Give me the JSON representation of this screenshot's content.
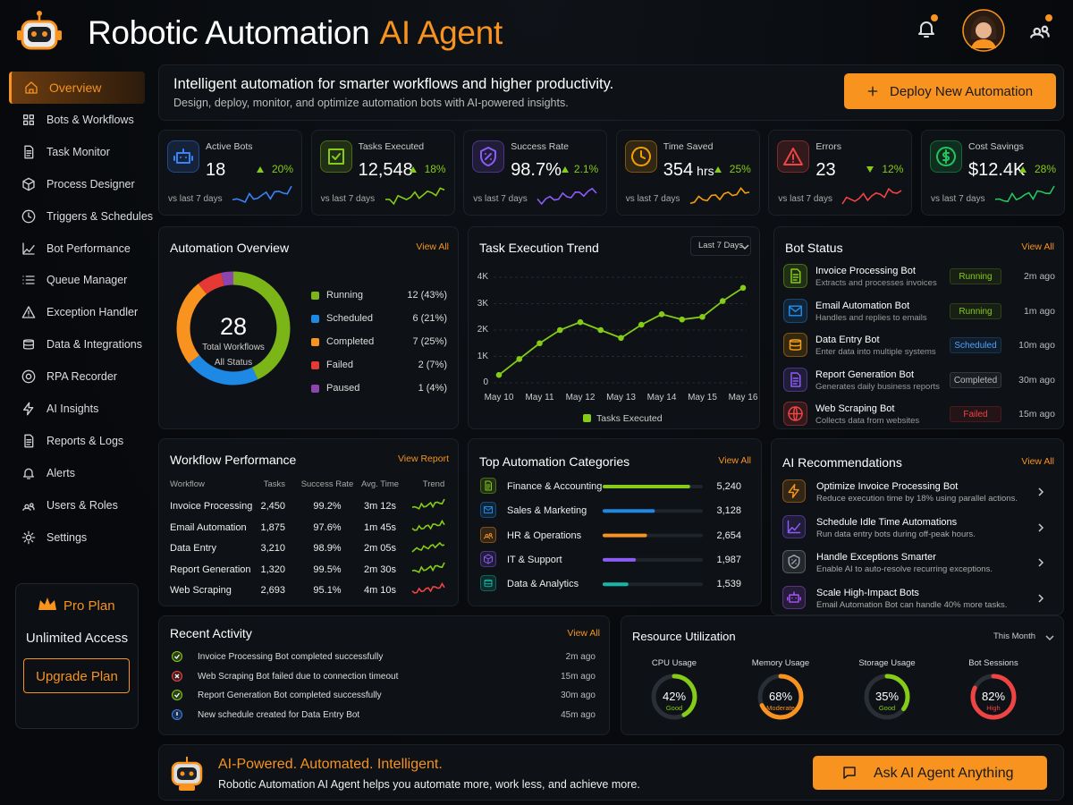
{
  "header": {
    "title_main": "Robotic Automation",
    "title_accent": "AI Agent"
  },
  "nav": [
    {
      "label": "Overview",
      "active": true
    },
    {
      "label": "Bots & Workflows"
    },
    {
      "label": "Task Monitor"
    },
    {
      "label": "Process Designer"
    },
    {
      "label": "Triggers & Schedules"
    },
    {
      "label": "Bot Performance"
    },
    {
      "label": "Queue Manager"
    },
    {
      "label": "Exception Handler"
    },
    {
      "label": "Data & Integrations"
    },
    {
      "label": "RPA Recorder"
    },
    {
      "label": "AI Insights"
    },
    {
      "label": "Reports & Logs"
    },
    {
      "label": "Alerts"
    },
    {
      "label": "Users & Roles"
    },
    {
      "label": "Settings"
    }
  ],
  "plan": {
    "name": "Pro Plan",
    "desc": "Unlimited Access",
    "button": "Upgrade Plan"
  },
  "hero": {
    "headline": "Intelligent automation for smarter workflows and higher productivity.",
    "subline": "Design, deploy, monitor, and optimize automation bots with AI-powered insights.",
    "button": "Deploy New Automation"
  },
  "kpis": [
    {
      "label": "Active Bots",
      "value": "18",
      "change": "20%",
      "direction": "up",
      "period": "vs last 7 days",
      "color": "#3b82f6"
    },
    {
      "label": "Tasks Executed",
      "value": "12,548",
      "change": "18%",
      "direction": "up",
      "period": "vs last 7 days",
      "color": "#84cc16"
    },
    {
      "label": "Success Rate",
      "value": "98.7%",
      "change": "2.1%",
      "direction": "up",
      "period": "vs last 7 days",
      "color": "#8b5cf6"
    },
    {
      "label": "Time Saved",
      "value": "354",
      "unit": "hrs",
      "change": "25%",
      "direction": "up",
      "period": "vs last 7 days",
      "color": "#f59e0b"
    },
    {
      "label": "Errors",
      "value": "23",
      "change": "12%",
      "direction": "down",
      "period": "vs last 7 days",
      "color": "#ef4444"
    },
    {
      "label": "Cost Savings",
      "value": "$12.4K",
      "change": "28%",
      "direction": "up",
      "period": "vs last 7 days",
      "color": "#22c55e"
    }
  ],
  "automation_overview": {
    "title": "Automation Overview",
    "link": "View All",
    "total": "28",
    "total_label": "Total Workflows",
    "sublabel": "All Status",
    "statuses": [
      {
        "name": "Running",
        "count": 12,
        "label": "12 (43%)",
        "color": "#7cb518"
      },
      {
        "name": "Scheduled",
        "count": 6,
        "label": "6 (21%)",
        "color": "#1e88e5"
      },
      {
        "name": "Completed",
        "count": 7,
        "label": "7 (25%)",
        "color": "#f7931e"
      },
      {
        "name": "Failed",
        "count": 2,
        "label": "2 (7%)",
        "color": "#e53935"
      },
      {
        "name": "Paused",
        "count": 1,
        "label": "1 (4%)",
        "color": "#8e44ad"
      }
    ]
  },
  "execution_trend": {
    "title": "Task Execution Trend",
    "filter": "Last 7 Days",
    "chart": {
      "type": "line",
      "categories": [
        "May 10",
        null,
        "May 11",
        null,
        "May 12",
        null,
        "May 13",
        null,
        "May 14",
        null,
        "May 15",
        null,
        "May 16"
      ],
      "series": [
        {
          "name": "Tasks Executed",
          "color": "#84cc16",
          "values": [
            300,
            900,
            1500,
            2000,
            2300,
            2000,
            1700,
            2200,
            2600,
            2400,
            2500,
            3100,
            3600
          ]
        }
      ],
      "ylim": [
        0,
        4000
      ],
      "yticks": [
        0,
        {
          "value": 1000,
          "label": "1K"
        },
        {
          "value": 2000,
          "label": "2K"
        },
        {
          "value": 3000,
          "label": "3K"
        },
        {
          "value": 4000,
          "label": "4K"
        }
      ],
      "grid": true
    }
  },
  "bot_status": {
    "title": "Bot Status",
    "link": "View All",
    "bots": [
      {
        "name": "Invoice Processing Bot",
        "desc": "Extracts and processes invoices",
        "status": "Running",
        "time": "2m ago",
        "color": "#84cc16",
        "icon": "doc"
      },
      {
        "name": "Email Automation Bot",
        "desc": "Handles and replies to emails",
        "status": "Running",
        "time": "1m ago",
        "color": "#1e88e5",
        "icon": "mail"
      },
      {
        "name": "Data Entry Bot",
        "desc": "Enter data into multiple systems",
        "status": "Scheduled",
        "time": "10m ago",
        "color": "#f59e0b",
        "icon": "db"
      },
      {
        "name": "Report Generation Bot",
        "desc": "Generates daily business reports",
        "status": "Completed",
        "time": "30m ago",
        "color": "#8b5cf6",
        "icon": "doc"
      },
      {
        "name": "Web Scraping Bot",
        "desc": "Collects data from websites",
        "status": "Failed",
        "time": "15m ago",
        "color": "#ef4444",
        "icon": "globe"
      }
    ]
  },
  "workflow_performance": {
    "title": "Workflow Performance",
    "link": "View Report",
    "columns": [
      "Workflow",
      "Tasks",
      "Success Rate",
      "Avg. Time",
      "Trend"
    ],
    "rows": [
      [
        "Invoice Processing",
        "2,450",
        "99.2%",
        "3m 12s"
      ],
      [
        "Email Automation",
        "1,875",
        "97.6%",
        "1m 45s"
      ],
      [
        "Data Entry",
        "3,210",
        "98.9%",
        "2m 05s"
      ],
      [
        "Report Generation",
        "1,320",
        "99.5%",
        "2m 30s"
      ],
      [
        "Web Scraping",
        "2,693",
        "95.1%",
        "4m 10s"
      ]
    ],
    "trend_colors": [
      "#84cc16",
      "#84cc16",
      "#84cc16",
      "#84cc16",
      "#ef4444"
    ]
  },
  "top_categories": {
    "title": "Top Automation Categories",
    "link": "View All",
    "xlim": [
      0,
      6000
    ],
    "items": [
      {
        "name": "Finance & Accounting",
        "value": 5240,
        "label": "5,240",
        "color": "#84cc16"
      },
      {
        "name": "Sales & Marketing",
        "value": 3128,
        "label": "3,128",
        "color": "#1e88e5"
      },
      {
        "name": "HR & Operations",
        "value": 2654,
        "label": "2,654",
        "color": "#f7931e"
      },
      {
        "name": "IT & Support",
        "value": 1987,
        "label": "1,987",
        "color": "#8b5cf6"
      },
      {
        "name": "Data & Analytics",
        "value": 1539,
        "label": "1,539",
        "color": "#14b8a6"
      }
    ]
  },
  "ai_recommendations": {
    "title": "AI Recommendations",
    "link": "View All",
    "items": [
      {
        "title": "Optimize Invoice Processing Bot",
        "desc": "Reduce execution time by 18% using parallel actions.",
        "color": "#f7931e",
        "icon": "bolt"
      },
      {
        "title": "Schedule Idle Time Automations",
        "desc": "Run data entry bots during off-peak hours.",
        "color": "#8b5cf6",
        "icon": "chart"
      },
      {
        "title": "Handle Exceptions Smarter",
        "desc": "Enable AI to auto-resolve recurring exceptions.",
        "color": "#9ca3af",
        "icon": "shield"
      },
      {
        "title": "Scale High-Impact Bots",
        "desc": "Email Automation Bot can handle 40% more tasks.",
        "color": "#a855f7",
        "icon": "robot"
      }
    ]
  },
  "recent_activity": {
    "title": "Recent Activity",
    "link": "View All",
    "items": [
      {
        "text": "Invoice Processing Bot completed successfully",
        "time": "2m ago",
        "status": "success"
      },
      {
        "text": "Web Scraping Bot failed due to connection timeout",
        "time": "15m ago",
        "status": "error"
      },
      {
        "text": "Report Generation Bot completed successfully",
        "time": "30m ago",
        "status": "success"
      },
      {
        "text": "New schedule created for Data Entry Bot",
        "time": "45m ago",
        "status": "info"
      }
    ]
  },
  "resource_utilization": {
    "title": "Resource Utilization",
    "filter": "This Month",
    "ylim": [
      0,
      100
    ],
    "gauges": [
      {
        "name": "CPU Usage",
        "value": 42,
        "label": "42%",
        "status": "Good",
        "color": "#84cc16"
      },
      {
        "name": "Memory Usage",
        "value": 68,
        "label": "68%",
        "status": "Moderate",
        "color": "#f7931e"
      },
      {
        "name": "Storage Usage",
        "value": 35,
        "label": "35%",
        "status": "Good",
        "color": "#84cc16"
      },
      {
        "name": "Bot Sessions",
        "value": 82,
        "label": "82%",
        "status": "High",
        "color": "#ef4444"
      }
    ]
  },
  "footer": {
    "tagline": "AI-Powered. Automated. Intelligent.",
    "desc": "Robotic Automation AI Agent helps you automate more, work less, and achieve more.",
    "button": "Ask AI Agent Anything"
  }
}
